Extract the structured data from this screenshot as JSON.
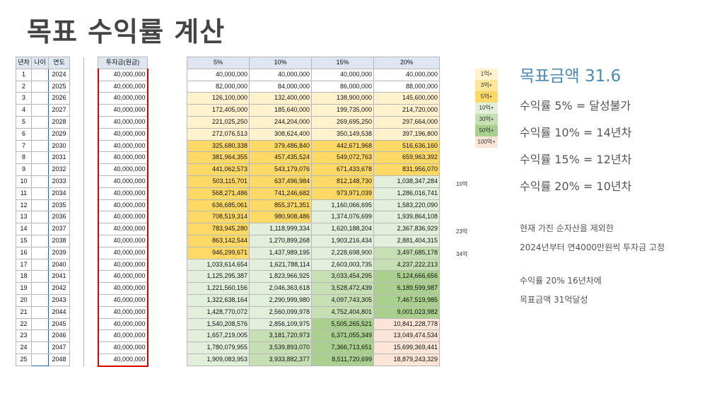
{
  "title": "목표 수익률 계산",
  "left_headers": [
    "년차",
    "나이",
    "연도",
    "투자금(원금)"
  ],
  "right_headers": [
    "5%",
    "10%",
    "15%",
    "20%"
  ],
  "rows": [
    {
      "n": "1",
      "y": "2024",
      "inv": "40,000,000",
      "v": [
        "40,000,000",
        "40,000,000",
        "40,000,000",
        "40,000,000"
      ],
      "c": [
        0,
        0,
        0,
        0
      ]
    },
    {
      "n": "2",
      "y": "2025",
      "inv": "40,000,000",
      "v": [
        "82,000,000",
        "84,000,000",
        "86,000,000",
        "88,000,000"
      ],
      "c": [
        0,
        0,
        0,
        0
      ]
    },
    {
      "n": "3",
      "y": "2026",
      "inv": "40,000,000",
      "v": [
        "126,100,000",
        "132,400,000",
        "138,900,000",
        "145,600,000"
      ],
      "c": [
        1,
        1,
        1,
        1
      ]
    },
    {
      "n": "4",
      "y": "2027",
      "inv": "40,000,000",
      "v": [
        "172,405,000",
        "185,640,000",
        "199,735,000",
        "214,720,000"
      ],
      "c": [
        1,
        1,
        1,
        1
      ]
    },
    {
      "n": "5",
      "y": "2028",
      "inv": "40,000,000",
      "v": [
        "221,025,250",
        "244,204,000",
        "269,695,250",
        "297,664,000"
      ],
      "c": [
        1,
        1,
        1,
        1
      ]
    },
    {
      "n": "6",
      "y": "2029",
      "inv": "40,000,000",
      "v": [
        "272,076,513",
        "308,624,400",
        "350,149,538",
        "397,196,800"
      ],
      "c": [
        1,
        1,
        1,
        1
      ]
    },
    {
      "n": "7",
      "y": "2030",
      "inv": "40,000,000",
      "v": [
        "325,680,338",
        "379,486,840",
        "442,671,968",
        "516,636,160"
      ],
      "c": [
        2,
        2,
        2,
        2
      ]
    },
    {
      "n": "8",
      "y": "2031",
      "inv": "40,000,000",
      "v": [
        "381,964,355",
        "457,435,524",
        "549,072,763",
        "659,963,392"
      ],
      "c": [
        2,
        2,
        2,
        2
      ]
    },
    {
      "n": "9",
      "y": "2032",
      "inv": "40,000,000",
      "v": [
        "441,062,573",
        "543,179,076",
        "671,433,678",
        "831,956,070"
      ],
      "c": [
        2,
        2,
        2,
        2
      ]
    },
    {
      "n": "10",
      "y": "2033",
      "inv": "40,000,000",
      "v": [
        "503,115,701",
        "637,496,984",
        "812,148,730",
        "1,038,347,284"
      ],
      "c": [
        2,
        2,
        2,
        3
      ]
    },
    {
      "n": "11",
      "y": "2034",
      "inv": "40,000,000",
      "v": [
        "568,271,486",
        "741,246,682",
        "973,971,039",
        "1,286,016,741"
      ],
      "c": [
        2,
        2,
        2,
        3
      ]
    },
    {
      "n": "12",
      "y": "2035",
      "inv": "40,000,000",
      "v": [
        "636,685,061",
        "855,371,351",
        "1,160,066,695",
        "1,583,220,090"
      ],
      "c": [
        2,
        2,
        3,
        3
      ]
    },
    {
      "n": "13",
      "y": "2036",
      "inv": "40,000,000",
      "v": [
        "708,519,314",
        "980,908,486",
        "1,374,076,699",
        "1,939,864,108"
      ],
      "c": [
        2,
        2,
        3,
        3
      ]
    },
    {
      "n": "14",
      "y": "2037",
      "inv": "40,000,000",
      "v": [
        "783,945,280",
        "1,118,999,334",
        "1,620,188,204",
        "2,367,836,929"
      ],
      "c": [
        2,
        3,
        3,
        3
      ]
    },
    {
      "n": "15",
      "y": "2038",
      "inv": "40,000,000",
      "v": [
        "863,142,544",
        "1,270,899,268",
        "1,903,216,434",
        "2,881,404,315"
      ],
      "c": [
        2,
        3,
        3,
        3
      ]
    },
    {
      "n": "16",
      "y": "2039",
      "inv": "40,000,000",
      "v": [
        "946,299,671",
        "1,437,989,195",
        "2,228,698,900",
        "3,497,685,178"
      ],
      "c": [
        2,
        3,
        3,
        4
      ]
    },
    {
      "n": "17",
      "y": "2040",
      "inv": "40,000,000",
      "v": [
        "1,033,614,654",
        "1,621,788,114",
        "2,603,003,735",
        "4,237,222,213"
      ],
      "c": [
        3,
        3,
        3,
        4
      ]
    },
    {
      "n": "18",
      "y": "2041",
      "inv": "40,000,000",
      "v": [
        "1,125,295,387",
        "1,823,966,925",
        "3,033,454,295",
        "5,124,666,656"
      ],
      "c": [
        3,
        3,
        4,
        5
      ]
    },
    {
      "n": "19",
      "y": "2042",
      "inv": "40,000,000",
      "v": [
        "1,221,560,156",
        "2,046,363,618",
        "3,528,472,439",
        "6,189,599,987"
      ],
      "c": [
        3,
        3,
        4,
        5
      ]
    },
    {
      "n": "20",
      "y": "2043",
      "inv": "40,000,000",
      "v": [
        "1,322,638,164",
        "2,290,999,980",
        "4,097,743,305",
        "7,467,519,985"
      ],
      "c": [
        3,
        3,
        4,
        5
      ]
    },
    {
      "n": "21",
      "y": "2044",
      "inv": "40,000,000",
      "v": [
        "1,428,770,072",
        "2,560,099,978",
        "4,752,404,801",
        "9,001,023,982"
      ],
      "c": [
        3,
        3,
        4,
        5
      ]
    },
    {
      "n": "22",
      "y": "2045",
      "inv": "40,000,000",
      "v": [
        "1,540,208,576",
        "2,856,109,975",
        "5,505,265,521",
        "10,841,228,778"
      ],
      "c": [
        3,
        3,
        5,
        6
      ]
    },
    {
      "n": "23",
      "y": "2046",
      "inv": "40,000,000",
      "v": [
        "1,657,219,005",
        "3,181,720,973",
        "6,371,055,349",
        "13,049,474,534"
      ],
      "c": [
        3,
        4,
        5,
        6
      ]
    },
    {
      "n": "24",
      "y": "2047",
      "inv": "40,000,000",
      "v": [
        "1,780,079,955",
        "3,539,893,070",
        "7,366,713,651",
        "15,699,369,441"
      ],
      "c": [
        3,
        4,
        5,
        6
      ]
    },
    {
      "n": "25",
      "y": "2048",
      "inv": "40,000,000",
      "v": [
        "1,909,083,953",
        "3,933,882,377",
        "8,511,720,699",
        "18,879,243,329"
      ],
      "c": [
        3,
        4,
        5,
        6
      ]
    }
  ],
  "tier_colors": [
    "#ffffff",
    "#fff2cc",
    "#ffd966",
    "#e2efda",
    "#c6e0b4",
    "#a9d08e",
    "#fce4d6"
  ],
  "side_notes": {
    "r10": "10억",
    "r14": "23억",
    "r16": "34억"
  },
  "legend": [
    "1억+",
    "3억+",
    "5억+",
    "10억+",
    "30억+",
    "50억+",
    "100억+"
  ],
  "legend_colors": [
    "#fff2cc",
    "#ffe699",
    "#ffd966",
    "#e2efda",
    "#c6e0b4",
    "#a9d08e",
    "#fce4d6"
  ],
  "info": {
    "goal": "목표금액 31.6",
    "rates": [
      "수익률 5% = 달성불가",
      "수익률 10% = 14년차",
      "수익률 15% = 12년차",
      "수익률 20% = 10년차"
    ],
    "notes": [
      "현재 가진 순자산을 제외한",
      "2024년부터 연4000만원씩 투자금 고정",
      "",
      "수익률 20% 16년차에",
      "목표금액 31억달성"
    ]
  }
}
